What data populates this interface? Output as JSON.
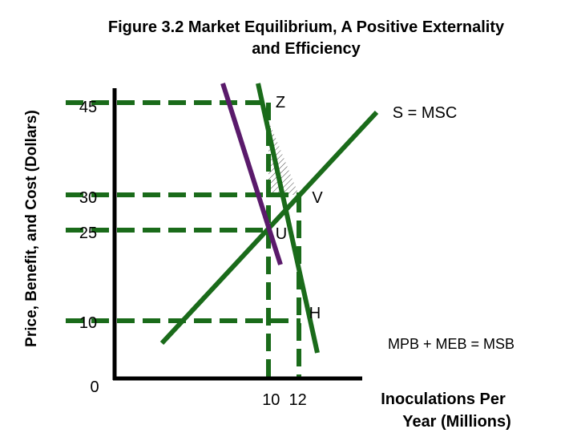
{
  "title": {
    "line1": "Figure 3.2 Market Equilibrium, A Positive Externality",
    "line2": "and Efficiency"
  },
  "y_axis_label": "Price, Benefit, and Cost (Dollars)",
  "x_axis_label": {
    "line1": "Inoculations Per",
    "line2": "Year (Millions)"
  },
  "price_labels": [
    "45",
    "30",
    "25",
    "10",
    "0"
  ],
  "quantity_labels": "10  12",
  "point_labels": {
    "z": "Z",
    "v": "V",
    "u": "U",
    "h": "H"
  },
  "curve_labels": {
    "supply": "S = MSC",
    "demand": "MPB + MEB = MSB"
  }
}
